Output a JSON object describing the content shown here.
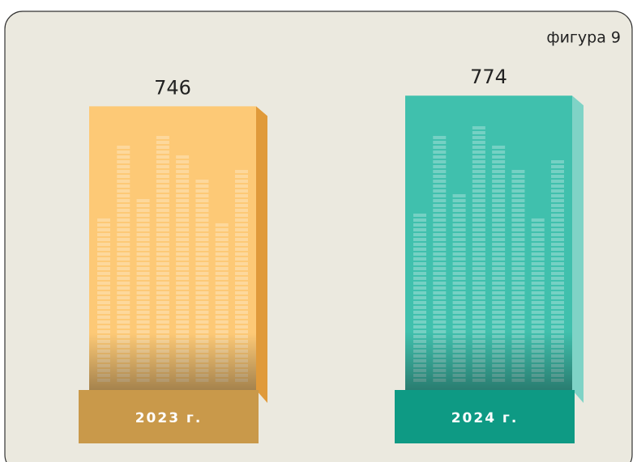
{
  "chart_data": {
    "type": "bar",
    "title": "фигура 9",
    "categories": [
      "2023 г.",
      "2024 г."
    ],
    "values": [
      746,
      774
    ],
    "colors": [
      "#fdc976",
      "#40c0ad"
    ]
  }
}
